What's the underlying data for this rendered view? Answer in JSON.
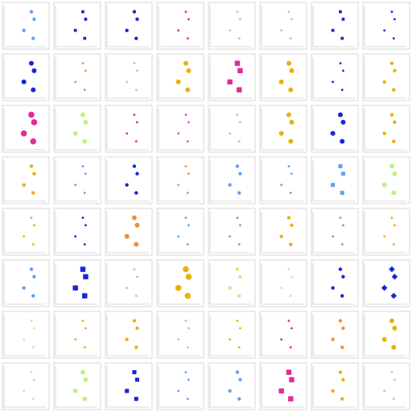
{
  "grid": {
    "rows": 8,
    "cols": 8,
    "palette": {
      "blue": "#0b1bd6",
      "lightblue": "#5a9cf0",
      "orange": "#f08a2a",
      "pink": "#e02090",
      "mint": "#88d8b0",
      "amber": "#e9ad00",
      "lime": "#b7f37a",
      "violet": "#c85ad0"
    },
    "tiles": [
      {
        "color": "lightblue",
        "shape": "circle",
        "size": 2
      },
      {
        "color": "blue",
        "shape": "square",
        "size": 2
      },
      {
        "color": "blue",
        "shape": "circle",
        "size": 2
      },
      {
        "color": "pink",
        "shape": "circle",
        "size": 1
      },
      {
        "color": "mint",
        "shape": "circle",
        "size": 1
      },
      {
        "color": "mint",
        "shape": "circle",
        "size": 1
      },
      {
        "color": "blue",
        "shape": "square",
        "size": 2
      },
      {
        "color": "blue",
        "shape": "circle",
        "size": 1
      },
      {
        "color": "blue",
        "shape": "circle",
        "size": 3
      },
      {
        "color": "orange",
        "shape": "circle",
        "size": 1
      },
      {
        "color": "mint",
        "shape": "circle",
        "size": 1
      },
      {
        "color": "amber",
        "shape": "circle",
        "size": 3
      },
      {
        "color": "pink",
        "shape": "square",
        "size": 4
      },
      {
        "color": "amber",
        "shape": "circle",
        "size": 3
      },
      {
        "color": "blue",
        "shape": "circle",
        "size": 1
      },
      {
        "color": "amber",
        "shape": "circle",
        "size": 2
      },
      {
        "color": "pink",
        "shape": "circle",
        "size": 4
      },
      {
        "color": "lime",
        "shape": "circle",
        "size": 3
      },
      {
        "color": "pink",
        "shape": "circle",
        "size": 1
      },
      {
        "color": "violet",
        "shape": "circle",
        "size": 1
      },
      {
        "color": "mint",
        "shape": "circle",
        "size": 1
      },
      {
        "color": "amber",
        "shape": "circle",
        "size": 3
      },
      {
        "color": "blue",
        "shape": "circle",
        "size": 3
      },
      {
        "color": "amber",
        "shape": "circle",
        "size": 2
      },
      {
        "color": "amber",
        "shape": "circle",
        "size": 2
      },
      {
        "color": "lightblue",
        "shape": "circle",
        "size": 1
      },
      {
        "color": "blue",
        "shape": "circle",
        "size": 2
      },
      {
        "color": "orange",
        "shape": "circle",
        "size": 1
      },
      {
        "color": "lightblue",
        "shape": "circle",
        "size": 2
      },
      {
        "color": "lightblue",
        "shape": "circle",
        "size": 1
      },
      {
        "color": "lightblue",
        "shape": "square",
        "size": 3
      },
      {
        "color": "lime",
        "shape": "circle",
        "size": 3
      },
      {
        "color": "amber",
        "shape": "circle",
        "size": 1
      },
      {
        "color": "blue",
        "shape": "circle",
        "size": 1
      },
      {
        "color": "orange",
        "shape": "circle",
        "size": 3
      },
      {
        "color": "lightblue",
        "shape": "circle",
        "size": 1
      },
      {
        "color": "lightblue",
        "shape": "circle",
        "size": 1
      },
      {
        "color": "amber",
        "shape": "circle",
        "size": 2
      },
      {
        "color": "lightblue",
        "shape": "circle",
        "size": 1
      },
      {
        "color": "amber",
        "shape": "circle",
        "size": 1
      },
      {
        "color": "lightblue",
        "shape": "circle",
        "size": 2
      },
      {
        "color": "blue",
        "shape": "square",
        "size": 4
      },
      {
        "color": "mint",
        "shape": "circle",
        "size": 1
      },
      {
        "color": "amber",
        "shape": "circle",
        "size": 4
      },
      {
        "color": "lime",
        "shape": "circle",
        "size": 2
      },
      {
        "color": "lime",
        "shape": "circle",
        "size": 1
      },
      {
        "color": "blue",
        "shape": "circle",
        "size": 2
      },
      {
        "color": "blue",
        "shape": "diamond",
        "size": 3
      },
      {
        "color": "lime",
        "shape": "circle",
        "size": 1
      },
      {
        "color": "amber",
        "shape": "circle",
        "size": 1
      },
      {
        "color": "amber",
        "shape": "circle",
        "size": 2
      },
      {
        "color": "mint",
        "shape": "circle",
        "size": 1
      },
      {
        "color": "amber",
        "shape": "circle",
        "size": 1
      },
      {
        "color": "pink",
        "shape": "circle",
        "size": 1
      },
      {
        "color": "orange",
        "shape": "circle",
        "size": 2
      },
      {
        "color": "amber",
        "shape": "circle",
        "size": 3
      },
      {
        "color": "lime",
        "shape": "circle",
        "size": 1
      },
      {
        "color": "lime",
        "shape": "circle",
        "size": 3
      },
      {
        "color": "blue",
        "shape": "square",
        "size": 3
      },
      {
        "color": "lightblue",
        "shape": "circle",
        "size": 1
      },
      {
        "color": "lightblue",
        "shape": "circle",
        "size": 2
      },
      {
        "color": "pink",
        "shape": "square",
        "size": 4
      },
      {
        "color": "amber",
        "shape": "circle",
        "size": 2
      },
      {
        "color": "mint",
        "shape": "circle",
        "size": 1
      }
    ]
  }
}
